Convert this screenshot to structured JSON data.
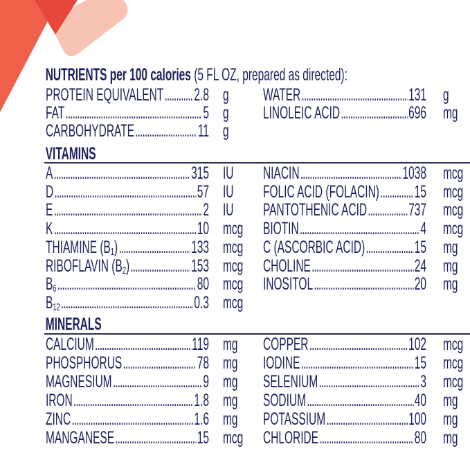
{
  "colors": {
    "text": "#1c1f5c",
    "shape_main": "#ee6049",
    "shape_dark": "#e6473a",
    "shape_pink": "#f9c3b4"
  },
  "header": {
    "bold": "NUTRIENTS per 100 calories",
    "rest": " (5 FL OZ, prepared as directed):"
  },
  "general": {
    "left": [
      {
        "label": "PROTEIN EQUIVALENT",
        "sub": "",
        "after": "",
        "value": "2.8",
        "unit": "g"
      },
      {
        "label": "FAT",
        "sub": "",
        "after": "",
        "value": "5",
        "unit": "g"
      },
      {
        "label": "CARBOHYDRATE",
        "sub": "",
        "after": "",
        "value": "11",
        "unit": "g"
      }
    ],
    "right": [
      {
        "label": "WATER",
        "sub": "",
        "after": "",
        "value": "131",
        "unit": "g"
      },
      {
        "label": "LINOLEIC ACID",
        "sub": "",
        "after": "",
        "value": "696",
        "unit": "mg"
      }
    ]
  },
  "vitamins": {
    "title": "VITAMINS",
    "left": [
      {
        "label": "A",
        "sub": "",
        "after": "",
        "value": "315",
        "unit": "IU"
      },
      {
        "label": "D",
        "sub": "",
        "after": "",
        "value": "57",
        "unit": "IU"
      },
      {
        "label": "E",
        "sub": "",
        "after": "",
        "value": "2",
        "unit": "IU"
      },
      {
        "label": "K",
        "sub": "",
        "after": "",
        "value": "10",
        "unit": "mcg"
      },
      {
        "label": "THIAMINE (B",
        "sub": "1",
        "after": ")",
        "value": "133",
        "unit": "mcg"
      },
      {
        "label": "RIBOFLAVIN (B",
        "sub": "2",
        "after": ")",
        "value": "153",
        "unit": "mcg"
      },
      {
        "label": "B",
        "sub": "6",
        "after": "",
        "value": "80",
        "unit": "mcg"
      },
      {
        "label": "B",
        "sub": "12",
        "after": "",
        "value": "0.3",
        "unit": "mcg"
      }
    ],
    "right": [
      {
        "label": "NIACIN",
        "sub": "",
        "after": "",
        "value": "1038",
        "unit": "mcg"
      },
      {
        "label": "FOLIC ACID (FOLACIN)",
        "sub": "",
        "after": "",
        "value": "15",
        "unit": "mcg"
      },
      {
        "label": "PANTOTHENIC ACID",
        "sub": "",
        "after": "",
        "value": "737",
        "unit": "mcg"
      },
      {
        "label": "BIOTIN",
        "sub": "",
        "after": "",
        "value": "4",
        "unit": "mcg"
      },
      {
        "label": "C (ASCORBIC ACID)",
        "sub": "",
        "after": "",
        "value": "15",
        "unit": "mg"
      },
      {
        "label": "CHOLINE",
        "sub": "",
        "after": "",
        "value": "24",
        "unit": "mg"
      },
      {
        "label": "INOSITOL",
        "sub": "",
        "after": "",
        "value": "20",
        "unit": "mg"
      }
    ]
  },
  "minerals": {
    "title": "MINERALS",
    "left": [
      {
        "label": "CALCIUM",
        "sub": "",
        "after": "",
        "value": "119",
        "unit": "mg"
      },
      {
        "label": "PHOSPHORUS",
        "sub": "",
        "after": "",
        "value": "78",
        "unit": "mg"
      },
      {
        "label": "MAGNESIUM",
        "sub": "",
        "after": "",
        "value": "9",
        "unit": "mg"
      },
      {
        "label": "IRON",
        "sub": "",
        "after": "",
        "value": "1.8",
        "unit": "mg"
      },
      {
        "label": "ZINC",
        "sub": "",
        "after": "",
        "value": "1.6",
        "unit": "mg"
      },
      {
        "label": "MANGANESE",
        "sub": "",
        "after": "",
        "value": "15",
        "unit": "mcg"
      }
    ],
    "right": [
      {
        "label": "COPPER",
        "sub": "",
        "after": "",
        "value": "102",
        "unit": "mcg"
      },
      {
        "label": "IODINE",
        "sub": "",
        "after": "",
        "value": "15",
        "unit": "mcg"
      },
      {
        "label": "SELENIUM",
        "sub": "",
        "after": "",
        "value": "3",
        "unit": "mcg"
      },
      {
        "label": "SODIUM",
        "sub": "",
        "after": "",
        "value": "40",
        "unit": "mg"
      },
      {
        "label": "POTASSIUM",
        "sub": "",
        "after": "",
        "value": "100",
        "unit": "mg"
      },
      {
        "label": "CHLORIDE",
        "sub": "",
        "after": "",
        "value": "80",
        "unit": "mg"
      }
    ]
  }
}
